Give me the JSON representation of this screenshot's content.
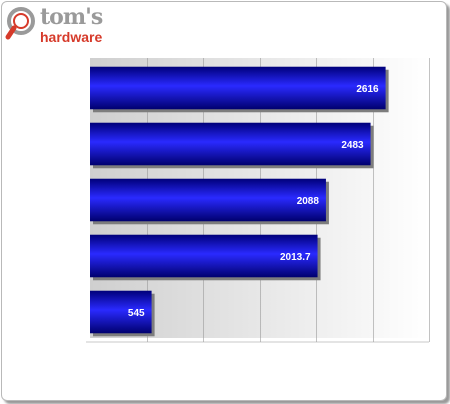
{
  "logo": {
    "line1": "tom's",
    "line2": "hardware",
    "colors": {
      "grey": "#9a9a9a",
      "red": "#d63a2a"
    }
  },
  "chart_data": {
    "type": "bar",
    "orientation": "horizontal",
    "categories": [
      "",
      "",
      "",
      "",
      ""
    ],
    "values": [
      2616,
      2483,
      2088,
      2013.7,
      545
    ],
    "value_labels": [
      "2616",
      "2483",
      "2088",
      "2013.7",
      "545"
    ],
    "xlim": [
      0,
      3000
    ],
    "grid": true,
    "legend": "none",
    "bar_color": "#1414c8"
  }
}
